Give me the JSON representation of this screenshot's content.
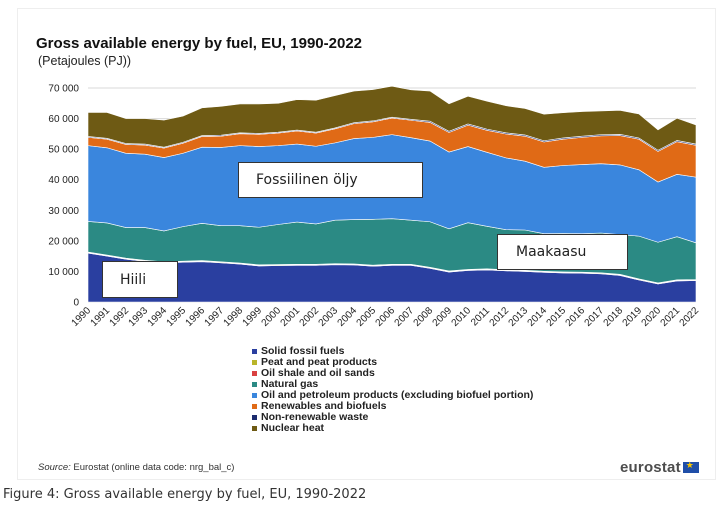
{
  "title": "Gross available energy by fuel, EU, 1990-2022",
  "subtitle": "(Petajoules (PJ))",
  "source_label": "Source:",
  "source_text": " Eurostat (online data code: nrg_bal_c)",
  "logo_text": "eurostat",
  "caption": "Figure 4: Gross available energy by fuel, EU, 1990-2022",
  "annotations": {
    "oil": "Fossiilinen öljy",
    "gas": "Maakaasu",
    "coal": "Hiili"
  },
  "chart_data": {
    "type": "area",
    "stacked": true,
    "title": "Gross available energy by fuel, EU, 1990-2022",
    "subtitle": "(Petajoules (PJ))",
    "ylim": [
      0,
      70000
    ],
    "yticks": [
      "0",
      "10 000",
      "20 000",
      "30 000",
      "40 000",
      "50 000",
      "60 000",
      "70 000"
    ],
    "grid": true,
    "legend_position": "bottom",
    "x": [
      "1990",
      "1991",
      "1992",
      "1993",
      "1994",
      "1995",
      "1996",
      "1997",
      "1998",
      "1999",
      "2000",
      "2001",
      "2002",
      "2003",
      "2004",
      "2005",
      "2006",
      "2007",
      "2008",
      "2009",
      "2010",
      "2011",
      "2012",
      "2013",
      "2014",
      "2015",
      "2016",
      "2017",
      "2018",
      "2019",
      "2020",
      "2021",
      "2022"
    ],
    "series": [
      {
        "name": "Solid fossil fuels",
        "color": "#2a3fa0",
        "values": [
          16000,
          15000,
          14000,
          13300,
          12800,
          13000,
          13200,
          12800,
          12400,
          11800,
          11900,
          12000,
          12000,
          12200,
          12100,
          11700,
          12000,
          12000,
          11000,
          9800,
          10300,
          10500,
          10200,
          10000,
          9700,
          9500,
          9400,
          9200,
          8700,
          7200,
          5900,
          6900,
          7000
        ]
      },
      {
        "name": "Peat and peat products",
        "color": "#b9b52a",
        "values": [
          200,
          200,
          200,
          200,
          200,
          200,
          200,
          200,
          200,
          200,
          200,
          200,
          200,
          200,
          200,
          200,
          200,
          200,
          200,
          200,
          200,
          200,
          200,
          200,
          200,
          200,
          200,
          200,
          200,
          200,
          200,
          200,
          200
        ]
      },
      {
        "name": "Oil shale and oil sands",
        "color": "#d94141",
        "values": [
          150,
          150,
          150,
          150,
          150,
          150,
          150,
          150,
          150,
          150,
          150,
          150,
          150,
          150,
          150,
          150,
          150,
          150,
          150,
          150,
          150,
          150,
          150,
          150,
          150,
          150,
          150,
          150,
          150,
          150,
          150,
          150,
          150
        ]
      },
      {
        "name": "Natural gas",
        "color": "#2b8a84",
        "values": [
          10000,
          10500,
          10000,
          10700,
          10100,
          11300,
          12200,
          11800,
          12200,
          12300,
          13100,
          13800,
          13200,
          14200,
          14500,
          15000,
          14900,
          14400,
          14900,
          13800,
          15300,
          13900,
          13100,
          13200,
          12300,
          12600,
          12600,
          13000,
          13000,
          14000,
          13300,
          14100,
          12000
        ]
      },
      {
        "name": "Oil and petroleum products (excluding biofuel portion)",
        "color": "#3a86dd",
        "values": [
          24800,
          24600,
          24300,
          24000,
          24000,
          24000,
          24900,
          25600,
          26200,
          26400,
          25800,
          25500,
          25400,
          25300,
          26500,
          26800,
          27500,
          27000,
          26400,
          25100,
          24900,
          24200,
          23500,
          22500,
          21700,
          22200,
          22600,
          22700,
          22800,
          21700,
          19700,
          20400,
          21500
        ]
      },
      {
        "name": "Renewables and biofuels",
        "color": "#e06a16",
        "values": [
          2700,
          2800,
          2900,
          3000,
          3100,
          3300,
          3500,
          3700,
          3900,
          4000,
          4100,
          4300,
          4300,
          4600,
          4900,
          5100,
          5400,
          5700,
          6100,
          6400,
          7000,
          7200,
          7800,
          8200,
          8300,
          8600,
          8900,
          9100,
          9600,
          10000,
          10000,
          10700,
          10400
        ]
      },
      {
        "name": "Non-renewable waste",
        "color": "#1c2b6e",
        "values": [
          300,
          300,
          300,
          300,
          300,
          300,
          300,
          300,
          300,
          300,
          300,
          300,
          300,
          300,
          300,
          300,
          300,
          300,
          400,
          400,
          400,
          400,
          400,
          400,
          400,
          400,
          400,
          400,
          400,
          400,
          400,
          400,
          400
        ]
      },
      {
        "name": "Nuclear heat",
        "color": "#6e5a14",
        "values": [
          7850,
          8450,
          8150,
          8350,
          8850,
          8550,
          9050,
          9450,
          9450,
          9650,
          9450,
          9950,
          10450,
          10550,
          10350,
          10250,
          10150,
          9650,
          9850,
          9000,
          9050,
          9150,
          8850,
          8650,
          8700,
          8250,
          8050,
          7750,
          7850,
          7850,
          6650,
          7250,
          6250
        ]
      }
    ]
  }
}
